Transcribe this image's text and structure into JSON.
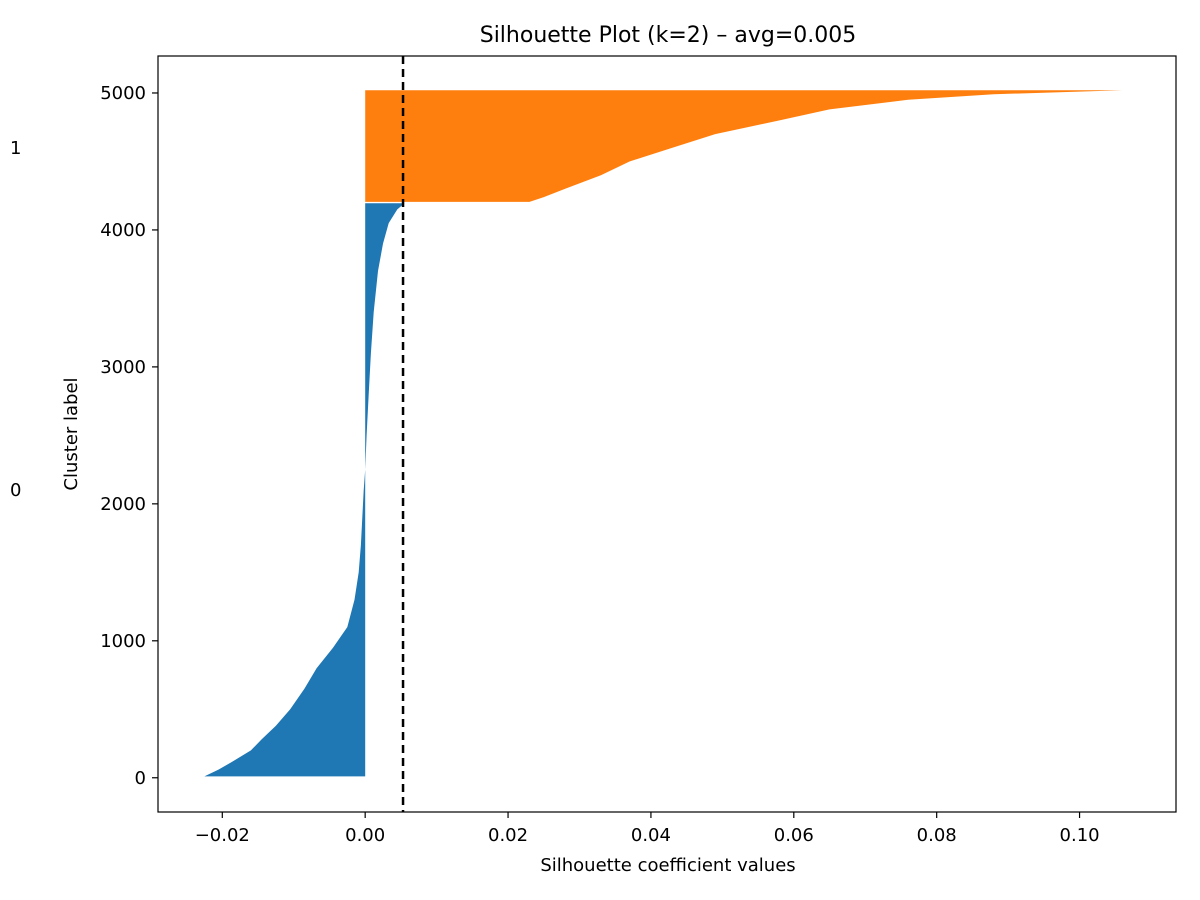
{
  "chart_data": {
    "type": "area",
    "title": "Silhouette Plot (k=2) – avg=0.005",
    "xlabel": "Silhouette coefficient values",
    "ylabel": "Cluster label",
    "xlim": [
      -0.029,
      0.1135
    ],
    "ylim": [
      -250,
      5270
    ],
    "x_ticks": [
      -0.02,
      0.0,
      0.02,
      0.04,
      0.06,
      0.08,
      0.1
    ],
    "x_tick_labels": [
      "−0.02",
      "0.00",
      "0.02",
      "0.04",
      "0.06",
      "0.08",
      "0.10"
    ],
    "y_ticks": [
      0,
      1000,
      2000,
      3000,
      4000,
      5000
    ],
    "y_tick_labels": [
      "0",
      "1000",
      "2000",
      "3000",
      "4000",
      "5000"
    ],
    "average_line": {
      "value": 0.0053,
      "style": "dashed",
      "color": "#000000"
    },
    "clusters": [
      {
        "label": "0",
        "color": "#1f77b4",
        "y_start": 10,
        "y_end": 4195,
        "label_y": 2100,
        "profile": [
          [
            10,
            -0.0225
          ],
          [
            60,
            -0.0205
          ],
          [
            120,
            -0.0185
          ],
          [
            200,
            -0.016
          ],
          [
            280,
            -0.0145
          ],
          [
            380,
            -0.0125
          ],
          [
            500,
            -0.0105
          ],
          [
            650,
            -0.0085
          ],
          [
            800,
            -0.0068
          ],
          [
            950,
            -0.0045
          ],
          [
            1100,
            -0.0025
          ],
          [
            1300,
            -0.0015
          ],
          [
            1500,
            -0.0009
          ],
          [
            1700,
            -0.0006
          ],
          [
            1900,
            -0.0004
          ],
          [
            2100,
            -0.0002
          ],
          [
            2250,
            0.0
          ],
          [
            2500,
            0.0002
          ],
          [
            2800,
            0.0005
          ],
          [
            3100,
            0.0008
          ],
          [
            3400,
            0.0012
          ],
          [
            3700,
            0.0018
          ],
          [
            3900,
            0.0025
          ],
          [
            4050,
            0.0033
          ],
          [
            4150,
            0.0045
          ],
          [
            4195,
            0.0055
          ]
        ]
      },
      {
        "label": "1",
        "color": "#ff7f0e",
        "y_start": 4205,
        "y_end": 5020,
        "label_y": 4600,
        "profile": [
          [
            4205,
            0.023
          ],
          [
            4240,
            0.025
          ],
          [
            4300,
            0.028
          ],
          [
            4400,
            0.033
          ],
          [
            4500,
            0.037
          ],
          [
            4600,
            0.043
          ],
          [
            4700,
            0.049
          ],
          [
            4800,
            0.058
          ],
          [
            4880,
            0.065
          ],
          [
            4950,
            0.076
          ],
          [
            4990,
            0.088
          ],
          [
            5020,
            0.106
          ]
        ]
      }
    ],
    "grid": false
  }
}
